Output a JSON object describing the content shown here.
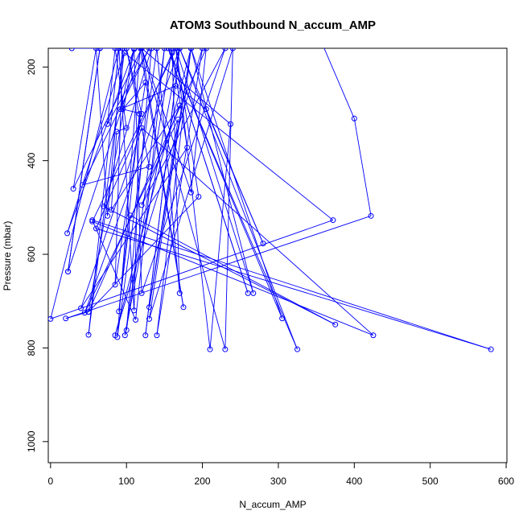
{
  "chart_data": {
    "type": "line",
    "title": "ATOM3 Southbound N_accum_AMP",
    "xlabel": "N_accum_AMP",
    "ylabel": "Pressure (mbar)",
    "xlim": [
      -3,
      601
    ],
    "ylim": [
      1045,
      160
    ],
    "y_axis_inverted": true,
    "x_ticks": [
      0,
      100,
      200,
      300,
      400,
      500,
      600
    ],
    "y_ticks": [
      200,
      400,
      600,
      800,
      1000
    ],
    "grid": false,
    "legend": "none",
    "line_color": "#0000ff",
    "marker": "open-circle",
    "series": [
      {
        "points": [
          [
            330,
            45
          ],
          [
            400,
            310
          ],
          [
            422,
            518
          ],
          [
            20,
            737
          ],
          [
            50,
            723
          ],
          [
            110,
            162
          ],
          [
            22,
            555
          ],
          [
            97,
            170
          ],
          [
            50,
            772
          ],
          [
            90,
            160
          ],
          [
            0,
            738
          ],
          [
            372,
            527
          ],
          [
            90,
            160
          ],
          [
            110,
            720
          ],
          [
            117,
            300
          ],
          [
            90,
            722
          ],
          [
            105,
            517
          ],
          [
            375,
            750
          ],
          [
            70,
            498
          ],
          [
            133,
            160
          ],
          [
            100,
            762
          ],
          [
            150,
            160
          ],
          [
            112,
            740
          ],
          [
            55,
            527
          ],
          [
            580,
            803
          ],
          [
            60,
            545
          ],
          [
            160,
            170
          ],
          [
            180,
            372
          ],
          [
            40,
            715
          ],
          [
            120,
            330
          ],
          [
            425,
            773
          ],
          [
            55,
            530
          ],
          [
            165,
            160
          ],
          [
            195,
            477
          ],
          [
            50,
            723
          ],
          [
            205,
            160
          ],
          [
            185,
            468
          ],
          [
            120,
            160
          ],
          [
            230,
            803
          ],
          [
            240,
            160
          ],
          [
            130,
            738
          ],
          [
            185,
            160
          ],
          [
            85,
            773
          ],
          [
            200,
            160
          ],
          [
            140,
            773
          ],
          [
            185,
            160
          ],
          [
            130,
            713
          ],
          [
            168,
            312
          ],
          [
            45,
            725
          ],
          [
            170,
            160
          ],
          [
            125,
            773
          ],
          [
            170,
            160
          ],
          [
            98,
            773
          ],
          [
            160,
            160
          ],
          [
            170,
            683
          ],
          [
            140,
            160
          ],
          [
            88,
            777
          ],
          [
            118,
            160
          ],
          [
            175,
            713
          ],
          [
            120,
            160
          ],
          [
            30,
            460
          ],
          [
            60,
            160
          ],
          [
            75,
            518
          ],
          [
            95,
            160
          ],
          [
            85,
            665
          ],
          [
            125,
            233
          ],
          [
            95,
            290
          ],
          [
            120,
            300
          ],
          [
            100,
            160
          ],
          [
            130,
            413
          ],
          [
            42,
            452
          ],
          [
            130,
            160
          ],
          [
            75,
            322
          ],
          [
            85,
            160
          ],
          [
            100,
            330
          ],
          [
            87,
            338
          ],
          [
            80,
            505
          ],
          [
            170,
            282
          ],
          [
            120,
            495
          ],
          [
            230,
            160
          ],
          [
            120,
            683
          ],
          [
            110,
            160
          ],
          [
            92,
            290
          ],
          [
            165,
            240
          ],
          [
            205,
            290
          ],
          [
            280,
            577
          ],
          [
            170,
            160
          ],
          [
            325,
            803
          ],
          [
            155,
            160
          ],
          [
            260,
            683
          ],
          [
            155,
            160
          ],
          [
            305,
            737
          ],
          [
            185,
            160
          ],
          [
            267,
            683
          ],
          [
            165,
            160
          ],
          [
            210,
            803
          ],
          [
            237,
            322
          ],
          [
            120,
            160
          ],
          [
            23,
            637
          ],
          [
            65,
            160
          ],
          [
            23,
            637
          ],
          [
            65,
            160
          ],
          [
            28,
            160
          ],
          [
            110,
            160
          ]
        ]
      }
    ]
  }
}
